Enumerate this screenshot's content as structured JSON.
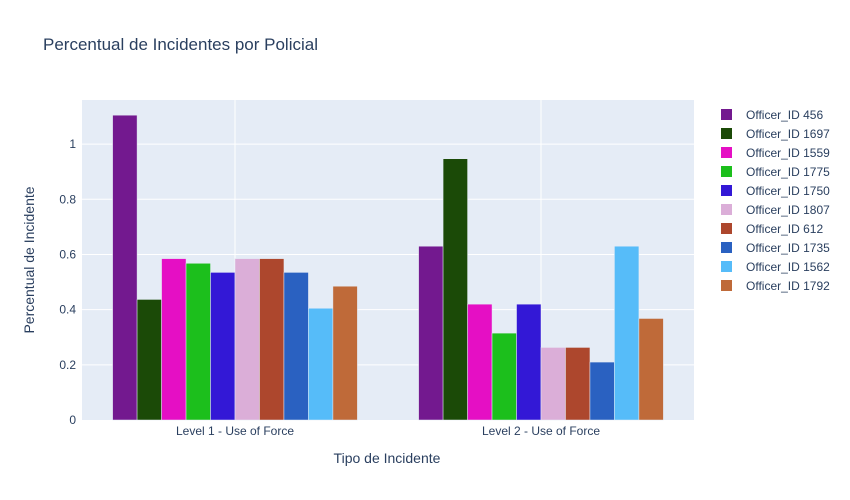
{
  "chart_data": {
    "type": "bar",
    "title": "Percentual de Incidentes por Policial",
    "xlabel": "Tipo de Incidente",
    "ylabel": "Percentual de Incidente",
    "categories": [
      "Level 1 - Use of Force",
      "Level 2 - Use of Force"
    ],
    "ylim": [
      0,
      1.16
    ],
    "yticks": [
      0,
      0.2,
      0.4,
      0.6,
      0.8,
      1
    ],
    "ytick_labels": [
      "0",
      "0.2",
      "0.4",
      "0.6",
      "0.8",
      "1"
    ],
    "grid": true,
    "legend_position": "right",
    "series": [
      {
        "name": "Officer_ID 456",
        "color": "#73198f",
        "values": [
          1.105,
          0.63
        ]
      },
      {
        "name": "Officer_ID 1697",
        "color": "#1b4a07",
        "values": [
          0.437,
          0.947
        ]
      },
      {
        "name": "Officer_ID 1559",
        "color": "#e50fc4",
        "values": [
          0.585,
          0.42
        ]
      },
      {
        "name": "Officer_ID 1775",
        "color": "#1cbf1c",
        "values": [
          0.568,
          0.315
        ]
      },
      {
        "name": "Officer_ID 1750",
        "color": "#3318d6",
        "values": [
          0.535,
          0.42
        ]
      },
      {
        "name": "Officer_ID 1807",
        "color": "#dbaed8",
        "values": [
          0.585,
          0.263
        ]
      },
      {
        "name": "Officer_ID 612",
        "color": "#ad472d",
        "values": [
          0.585,
          0.263
        ]
      },
      {
        "name": "Officer_ID 1735",
        "color": "#2a61c1",
        "values": [
          0.535,
          0.21
        ]
      },
      {
        "name": "Officer_ID 1562",
        "color": "#56bcf9",
        "values": [
          0.405,
          0.63
        ]
      },
      {
        "name": "Officer_ID 1792",
        "color": "#bf6a39",
        "values": [
          0.485,
          0.368
        ]
      }
    ]
  }
}
